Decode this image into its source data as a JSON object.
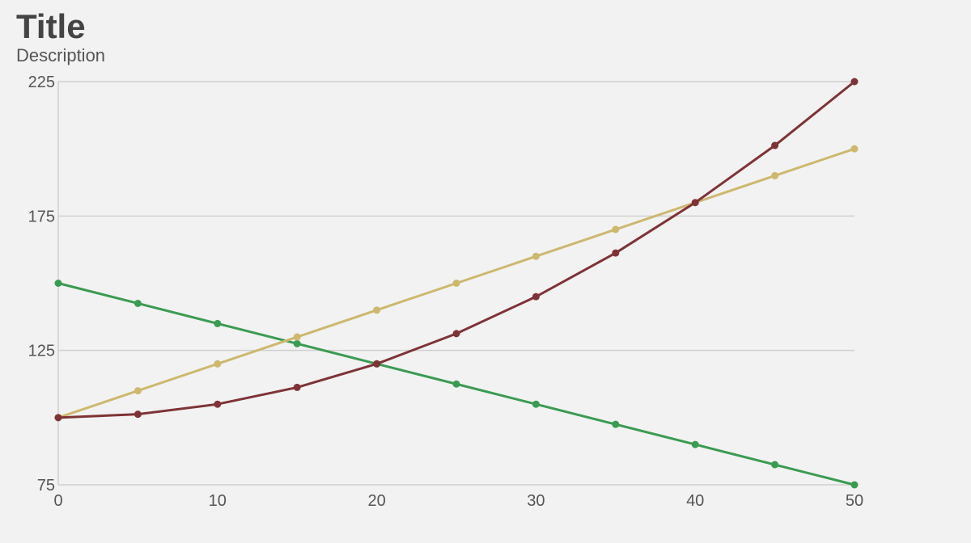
{
  "chart_data": {
    "type": "line",
    "title": "Title",
    "subtitle": "Description",
    "x": [
      0,
      5,
      10,
      15,
      20,
      25,
      30,
      35,
      40,
      45,
      50
    ],
    "series": [
      {
        "color": "#3b9b52",
        "values": [
          150,
          142.5,
          135,
          127.5,
          120,
          112.5,
          105,
          97.5,
          90,
          82.5,
          75
        ]
      },
      {
        "color": "#cdb86e",
        "values": [
          100,
          110,
          120,
          130,
          140,
          150,
          160,
          170,
          180,
          190,
          200
        ]
      },
      {
        "color": "#7e3337",
        "values": [
          100,
          101.25,
          105,
          111.25,
          120,
          131.25,
          145,
          161.25,
          180,
          201.25,
          225
        ]
      }
    ],
    "xlim": [
      0,
      50
    ],
    "xticks": [
      0,
      10,
      20,
      30,
      40,
      50
    ],
    "ylim": [
      75,
      225
    ],
    "yticks": [
      75,
      125,
      175,
      225
    ],
    "grid": true
  }
}
